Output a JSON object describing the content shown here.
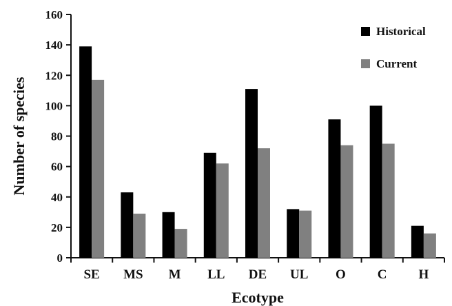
{
  "chart_data": {
    "type": "bar",
    "title": "",
    "xlabel": "Ecotype",
    "ylabel": "Number of species",
    "ylim": [
      0,
      160
    ],
    "yticks": [
      "0",
      "20",
      "40",
      "60",
      "80",
      "100",
      "120",
      "140",
      "160"
    ],
    "categories": [
      "SE",
      "MS",
      "M",
      "LL",
      "DE",
      "UL",
      "O",
      "C",
      "H"
    ],
    "series": [
      {
        "name": "Historical",
        "color": "#000000",
        "values": [
          139,
          43,
          30,
          69,
          111,
          32,
          91,
          100,
          21
        ]
      },
      {
        "name": "Current",
        "color": "#808080",
        "values": [
          117,
          29,
          19,
          62,
          72,
          31,
          74,
          75,
          16
        ]
      }
    ],
    "legend_position": "top-right",
    "grid": false
  }
}
